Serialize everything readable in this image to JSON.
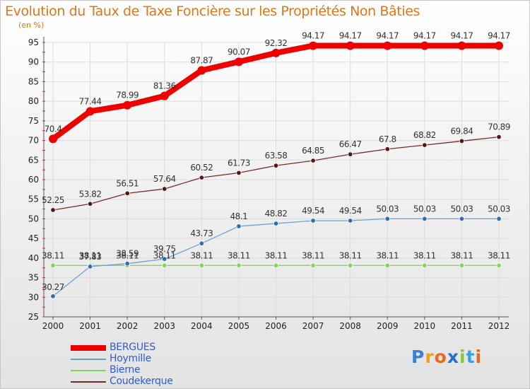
{
  "title": "Evolution du Taux de Taxe Foncière sur les Propriétés Non Bâties",
  "unit_label": "(en %)",
  "logo": {
    "text": "Proxiti",
    "letters": [
      "P",
      "r",
      "o",
      "x",
      "i",
      "t",
      "i"
    ],
    "colors": [
      "#3a7fd5",
      "#e8a31b",
      "#e56b1f",
      "#2a6fd0",
      "#8bc34a",
      "#3a9fe0",
      "#e56b1f"
    ]
  },
  "chart_data": {
    "type": "line",
    "x": [
      "2000",
      "2001",
      "2002",
      "2003",
      "2004",
      "2005",
      "2006",
      "2007",
      "2008",
      "2009",
      "2010",
      "2011",
      "2012"
    ],
    "ylim": [
      25,
      95
    ],
    "yticks": [
      25,
      30,
      35,
      40,
      45,
      50,
      55,
      60,
      65,
      70,
      75,
      80,
      85,
      90,
      95
    ],
    "grid": true,
    "legend_position": "bottom-left",
    "series": [
      {
        "name": "BERGUES",
        "color": "#ee0000",
        "values": [
          70.4,
          77.44,
          78.99,
          81.36,
          87.87,
          90.07,
          92.32,
          94.17,
          94.17,
          94.17,
          94.17,
          94.17,
          94.17
        ],
        "labels": [
          "70.4",
          "77.44",
          "78.99",
          "81.36",
          "87.87",
          "90.07",
          "92.32",
          "94.17",
          "94.17",
          "94.17",
          "94.17",
          "94.17",
          "94.17"
        ]
      },
      {
        "name": "Hoymille",
        "color": "#6a9fd6",
        "values": [
          30.27,
          37.83,
          38.59,
          39.75,
          43.73,
          48.1,
          48.82,
          49.54,
          49.54,
          50.03,
          50.03,
          50.03,
          50.03
        ],
        "labels": [
          "30.27",
          "37.83",
          "38.59",
          "39.75",
          "43.73",
          "48.1",
          "48.82",
          "49.54",
          "49.54",
          "50.03",
          "50.03",
          "50.03",
          "50.03"
        ]
      },
      {
        "name": "Bierne",
        "color": "#7ed957",
        "values": [
          38.11,
          38.11,
          38.11,
          38.11,
          38.11,
          38.11,
          38.11,
          38.11,
          38.11,
          38.11,
          38.11,
          38.11,
          38.11
        ],
        "labels": [
          "38.11",
          "38.11",
          "38.11",
          "38.11",
          "38.11",
          "38.11",
          "38.11",
          "38.11",
          "38.11",
          "38.11",
          "38.11",
          "38.11",
          "38.11"
        ]
      },
      {
        "name": "Coudekerque",
        "color": "#7a2a2a",
        "values": [
          52.25,
          53.82,
          56.51,
          57.64,
          60.52,
          61.73,
          63.58,
          64.85,
          66.47,
          67.8,
          68.82,
          69.84,
          70.89
        ],
        "labels": [
          "52.25",
          "53.82",
          "56.51",
          "57.64",
          "60.52",
          "61.73",
          "63.58",
          "64.85",
          "66.47",
          "67.8",
          "68.82",
          "69.84",
          "70.89"
        ]
      }
    ]
  }
}
